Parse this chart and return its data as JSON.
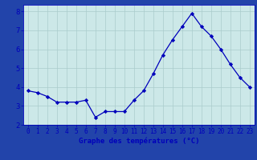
{
  "hours": [
    0,
    1,
    2,
    3,
    4,
    5,
    6,
    7,
    8,
    9,
    10,
    11,
    12,
    13,
    14,
    15,
    16,
    17,
    18,
    19,
    20,
    21,
    22,
    23
  ],
  "temps": [
    3.8,
    3.7,
    3.5,
    3.2,
    3.2,
    3.2,
    3.3,
    2.4,
    2.7,
    2.7,
    2.7,
    3.3,
    3.8,
    4.7,
    5.7,
    6.5,
    7.2,
    7.9,
    7.2,
    6.7,
    6.0,
    5.2,
    4.5,
    4.0
  ],
  "xlabel": "Graphe des températures (°C)",
  "xlim": [
    -0.5,
    23.5
  ],
  "ylim": [
    2.0,
    8.35
  ],
  "yticks": [
    2,
    3,
    4,
    5,
    6,
    7,
    8
  ],
  "xtick_labels": [
    "0",
    "1",
    "2",
    "3",
    "4",
    "5",
    "6",
    "7",
    "8",
    "9",
    "10",
    "11",
    "12",
    "13",
    "14",
    "15",
    "16",
    "17",
    "18",
    "19",
    "20",
    "21",
    "22",
    "23"
  ],
  "line_color": "#0000bb",
  "marker_color": "#0000bb",
  "plot_bg_color": "#cce8e8",
  "fig_bg_color": "#2244aa",
  "grid_color": "#aacccc",
  "axis_label_color": "#0000bb",
  "xlabel_color": "#0000bb",
  "xlabel_bg": "#2244aa",
  "tick_label_color": "#0000bb"
}
